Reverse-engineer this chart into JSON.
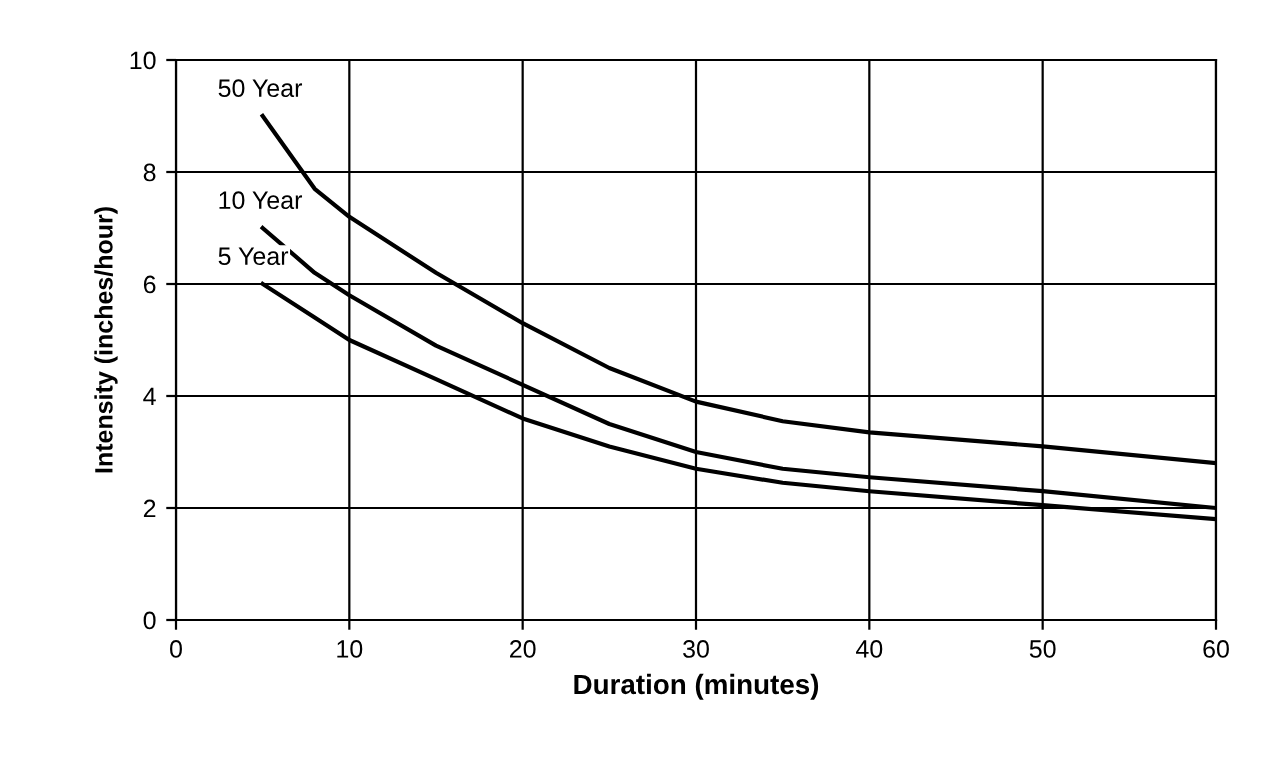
{
  "chart_data": {
    "type": "line",
    "xlabel": "Duration (minutes)",
    "ylabel": "Intensity (inches/hour)",
    "series": [
      {
        "name": "50 Year",
        "color": "#000000",
        "x": [
          5,
          8,
          10,
          15,
          20,
          25,
          30,
          35,
          40,
          50,
          60
        ],
        "values": [
          9.0,
          7.7,
          7.2,
          6.2,
          5.3,
          4.5,
          3.9,
          3.55,
          3.35,
          3.1,
          2.8
        ]
      },
      {
        "name": "10 Year",
        "color": "#000000",
        "x": [
          5,
          8,
          10,
          15,
          20,
          25,
          30,
          35,
          40,
          50,
          60
        ],
        "values": [
          7.0,
          6.2,
          5.8,
          4.9,
          4.2,
          3.5,
          3.0,
          2.7,
          2.55,
          2.3,
          2.0
        ]
      },
      {
        "name": "5 Year",
        "color": "#000000",
        "x": [
          5,
          8,
          10,
          15,
          20,
          25,
          30,
          35,
          40,
          50,
          60
        ],
        "values": [
          6.0,
          5.4,
          5.0,
          4.3,
          3.6,
          3.1,
          2.7,
          2.45,
          2.3,
          2.05,
          1.8
        ]
      }
    ],
    "xlim": [
      0,
      60
    ],
    "xticks": [
      0,
      10,
      20,
      30,
      40,
      50,
      60
    ],
    "ylim": [
      0,
      10
    ],
    "yticks": [
      0,
      2,
      4,
      6,
      8,
      10
    ],
    "grid": true,
    "legend": false,
    "marker": "none",
    "line_style": "solid"
  }
}
